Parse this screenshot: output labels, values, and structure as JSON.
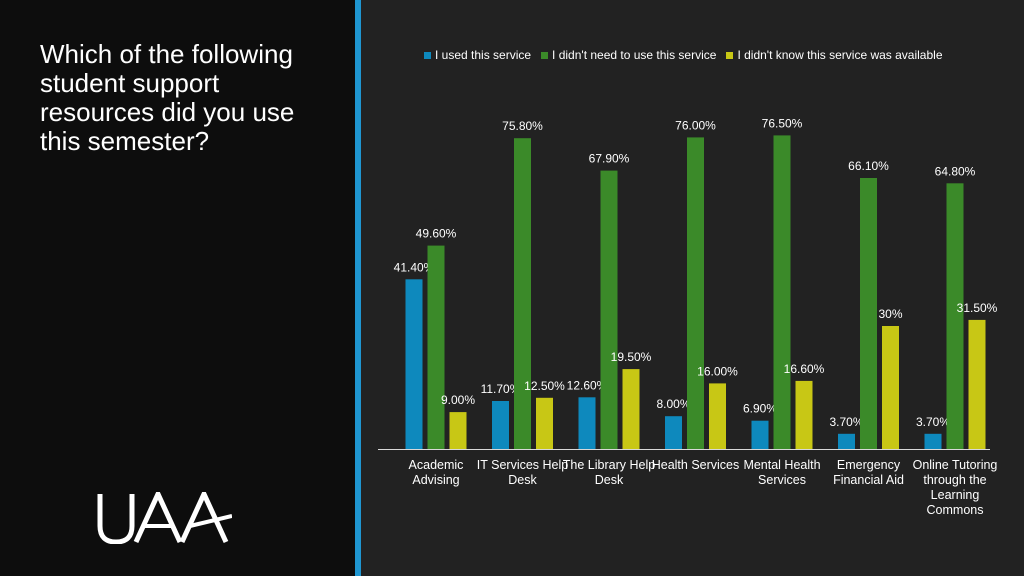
{
  "question": "Which of the following student support resources did you use this semester?",
  "logo_text": "UAA",
  "chart_data": {
    "type": "bar",
    "categories": [
      "Academic Advising",
      "IT Services Help Desk",
      "The Library Help Desk",
      "Health Services",
      "Mental Health Services",
      "Emergency Financial Aid",
      "Online Tutoring through the Learning Commons"
    ],
    "series": [
      {
        "name": "I used this service",
        "color": "#0e89bd",
        "values": [
          41.4,
          11.7,
          12.6,
          8.0,
          6.9,
          3.7,
          3.7
        ],
        "labels": [
          "41.40%",
          "11.70%",
          "12.60%",
          "8.00%",
          "6.90%",
          "3.70%",
          "3.70%"
        ]
      },
      {
        "name": "I didn't need to use this service",
        "color": "#3b8a29",
        "values": [
          49.6,
          75.8,
          67.9,
          76.0,
          76.5,
          66.1,
          64.8
        ],
        "labels": [
          "49.60%",
          "75.80%",
          "67.90%",
          "76.00%",
          "76.50%",
          "66.10%",
          "64.80%"
        ]
      },
      {
        "name": "I didn't know this service was available",
        "color": "#c8c715",
        "values": [
          9.0,
          12.5,
          19.5,
          16.0,
          16.6,
          30.0,
          31.5
        ],
        "labels": [
          "9.00%",
          "12.50%",
          "19.50%",
          "16.00%",
          "16.60%",
          "30%",
          "31.50%"
        ]
      }
    ],
    "ylim": [
      0,
      100
    ],
    "legend_position": "top",
    "grid": false
  }
}
